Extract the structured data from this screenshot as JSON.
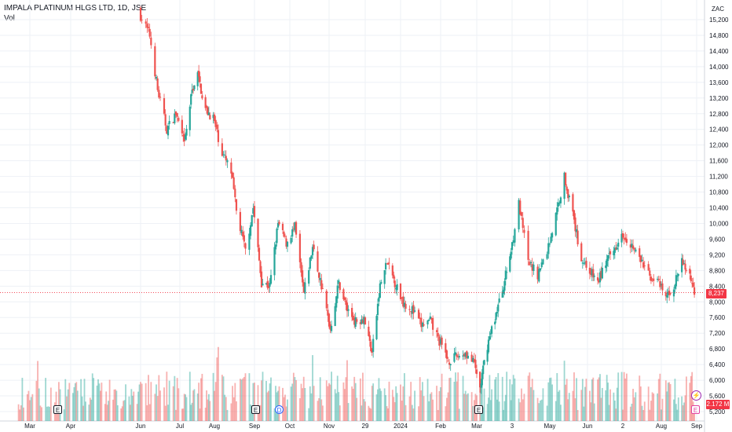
{
  "header": {
    "title": "IMPALA PLATINUM HLGS LTD, 1D, JSE",
    "vol_label": "Vol"
  },
  "currency": "ZAC",
  "last_price_label": "8,237",
  "last_volume_label": "2.172 M",
  "colors": {
    "up": "#26a69a",
    "down": "#ef5350",
    "last": "#f23645",
    "grid": "#eef1f6"
  },
  "markers": [
    {
      "type": "E",
      "label": "Mar 2023 earnings"
    },
    {
      "type": "E",
      "label": "Sep 2023 earnings"
    },
    {
      "type": "D",
      "label": "Sep 2023 dividend"
    },
    {
      "type": "E",
      "label": "Mar 2024 earnings"
    },
    {
      "type": "E",
      "label": "Sep 2024 earnings"
    }
  ],
  "chart_data": {
    "type": "candlestick",
    "title": "IMPALA PLATINUM HLGS LTD, 1D, JSE",
    "ylabel": "ZAC",
    "ylim": [
      5200,
      15400
    ],
    "y_ticks": [
      "15,200",
      "14,800",
      "14,400",
      "14,000",
      "13,600",
      "13,200",
      "12,800",
      "12,400",
      "12,000",
      "11,600",
      "11,200",
      "10,800",
      "10,400",
      "10,000",
      "9,600",
      "9,200",
      "8,800",
      "8,400",
      "8,000",
      "7,600",
      "7,200",
      "6,800",
      "6,400",
      "6,000",
      "5,600",
      "5,200"
    ],
    "x_ticks": [
      "Mar",
      "Apr",
      "Jun",
      "Jul",
      "Aug",
      "Sep",
      "Oct",
      "Nov",
      "29",
      "2024",
      "Feb",
      "Mar",
      "3",
      "May",
      "Jun",
      "2",
      "Aug",
      "Sep"
    ],
    "last_price": 8237,
    "close_path": [
      {
        "date": "2023-06-01",
        "close": 15300
      },
      {
        "date": "2023-06-08",
        "close": 14800
      },
      {
        "date": "2023-06-14",
        "close": 13400
      },
      {
        "date": "2023-06-21",
        "close": 12400
      },
      {
        "date": "2023-06-28",
        "close": 12800
      },
      {
        "date": "2023-07-05",
        "close": 12000
      },
      {
        "date": "2023-07-12",
        "close": 13400
      },
      {
        "date": "2023-07-17",
        "close": 13800
      },
      {
        "date": "2023-07-24",
        "close": 12900
      },
      {
        "date": "2023-07-31",
        "close": 12700
      },
      {
        "date": "2023-08-07",
        "close": 11800
      },
      {
        "date": "2023-08-14",
        "close": 11300
      },
      {
        "date": "2023-08-18",
        "close": 10300
      },
      {
        "date": "2023-08-25",
        "close": 9300
      },
      {
        "date": "2023-08-31",
        "close": 10400
      },
      {
        "date": "2023-09-07",
        "close": 8500
      },
      {
        "date": "2023-09-14",
        "close": 8400
      },
      {
        "date": "2023-09-21",
        "close": 10000
      },
      {
        "date": "2023-09-28",
        "close": 9500
      },
      {
        "date": "2023-10-05",
        "close": 9900
      },
      {
        "date": "2023-10-12",
        "close": 8200
      },
      {
        "date": "2023-10-19",
        "close": 9400
      },
      {
        "date": "2023-10-26",
        "close": 8400
      },
      {
        "date": "2023-11-02",
        "close": 7300
      },
      {
        "date": "2023-11-09",
        "close": 8500
      },
      {
        "date": "2023-11-16",
        "close": 7800
      },
      {
        "date": "2023-11-23",
        "close": 7500
      },
      {
        "date": "2023-11-30",
        "close": 7600
      },
      {
        "date": "2023-12-07",
        "close": 6700
      },
      {
        "date": "2023-12-14",
        "close": 8400
      },
      {
        "date": "2023-12-20",
        "close": 9000
      },
      {
        "date": "2024-01-03",
        "close": 8000
      },
      {
        "date": "2024-01-10",
        "close": 7800
      },
      {
        "date": "2024-01-17",
        "close": 7400
      },
      {
        "date": "2024-01-24",
        "close": 7500
      },
      {
        "date": "2024-01-31",
        "close": 7000
      },
      {
        "date": "2024-02-07",
        "close": 6500
      },
      {
        "date": "2024-02-14",
        "close": 6600
      },
      {
        "date": "2024-02-21",
        "close": 6700
      },
      {
        "date": "2024-02-28",
        "close": 6400
      },
      {
        "date": "2024-03-04",
        "close": 5800
      },
      {
        "date": "2024-03-11",
        "close": 6900
      },
      {
        "date": "2024-03-18",
        "close": 7600
      },
      {
        "date": "2024-03-25",
        "close": 8300
      },
      {
        "date": "2024-04-02",
        "close": 9300
      },
      {
        "date": "2024-04-08",
        "close": 10500
      },
      {
        "date": "2024-04-15",
        "close": 9000
      },
      {
        "date": "2024-04-22",
        "close": 8700
      },
      {
        "date": "2024-04-29",
        "close": 9300
      },
      {
        "date": "2024-05-06",
        "close": 10200
      },
      {
        "date": "2024-05-13",
        "close": 11200
      },
      {
        "date": "2024-05-20",
        "close": 10200
      },
      {
        "date": "2024-05-27",
        "close": 9100
      },
      {
        "date": "2024-06-03",
        "close": 8800
      },
      {
        "date": "2024-06-10",
        "close": 8500
      },
      {
        "date": "2024-06-17",
        "close": 9000
      },
      {
        "date": "2024-06-24",
        "close": 9300
      },
      {
        "date": "2024-07-01",
        "close": 9800
      },
      {
        "date": "2024-07-08",
        "close": 9500
      },
      {
        "date": "2024-07-15",
        "close": 9100
      },
      {
        "date": "2024-07-22",
        "close": 8700
      },
      {
        "date": "2024-07-29",
        "close": 8500
      },
      {
        "date": "2024-08-05",
        "close": 8100
      },
      {
        "date": "2024-08-12",
        "close": 8400
      },
      {
        "date": "2024-08-19",
        "close": 9000
      },
      {
        "date": "2024-08-26",
        "close": 8700
      },
      {
        "date": "2024-08-30",
        "close": 8237
      }
    ],
    "volume_ylim": [
      0,
      20
    ]
  }
}
